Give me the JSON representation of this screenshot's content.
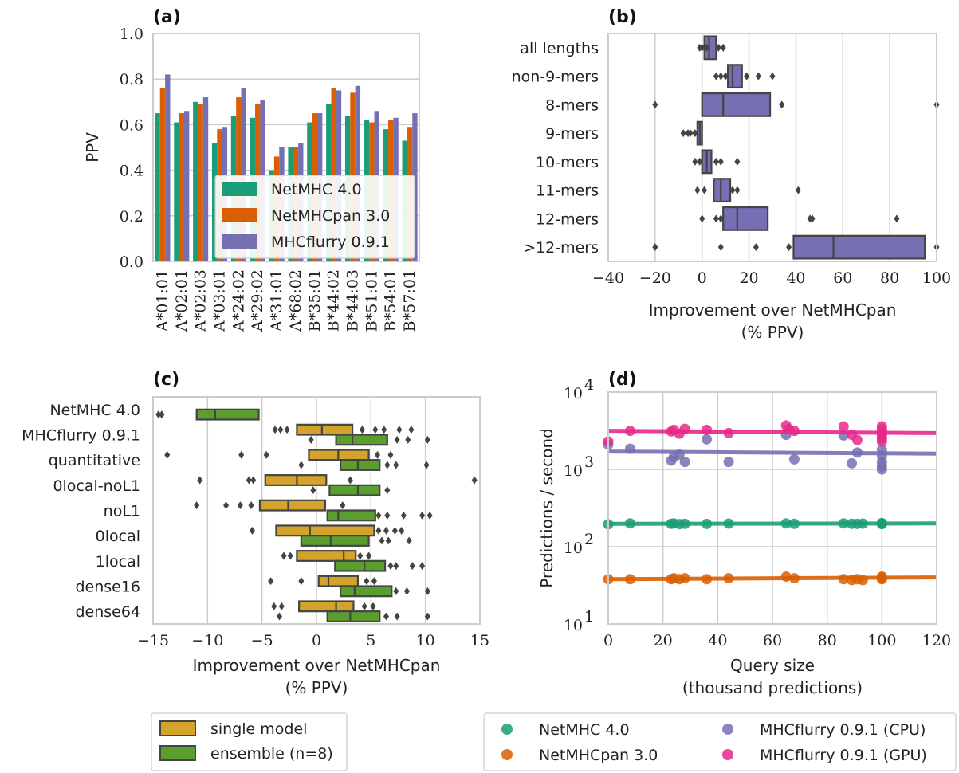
{
  "chart_data": [
    {
      "panel": "(a)",
      "type": "bar",
      "ylabel": "PPV",
      "ylim": [
        0,
        1.0
      ],
      "yticks": [
        "0.0",
        "0.2",
        "0.4",
        "0.6",
        "0.8",
        "1.0"
      ],
      "grid": true,
      "legend_placement": "lower-center",
      "categories": [
        "A*01:01",
        "A*02:01",
        "A*02:03",
        "A*03:01",
        "A*24:02",
        "A*29:02",
        "A*31:01",
        "A*68:02",
        "B*35:01",
        "B*44:02",
        "B*44:03",
        "B*51:01",
        "B*54:01",
        "B*57:01"
      ],
      "series": [
        {
          "name": "NetMHC 4.0",
          "color": "#1b9e77",
          "values": [
            0.65,
            0.61,
            0.7,
            0.52,
            0.64,
            0.63,
            0.4,
            0.5,
            0.61,
            0.69,
            0.64,
            0.62,
            0.58,
            0.53
          ]
        },
        {
          "name": "NetMHCpan 3.0",
          "color": "#d95f02",
          "values": [
            0.76,
            0.65,
            0.69,
            0.58,
            0.72,
            0.69,
            0.46,
            0.5,
            0.65,
            0.76,
            0.74,
            0.61,
            0.62,
            0.59
          ]
        },
        {
          "name": "MHCflurry 0.9.1",
          "color": "#7570b3",
          "values": [
            0.82,
            0.66,
            0.72,
            0.59,
            0.76,
            0.71,
            0.5,
            0.52,
            0.65,
            0.75,
            0.77,
            0.66,
            0.63,
            0.65
          ]
        }
      ]
    },
    {
      "panel": "(b)",
      "type": "box",
      "xlabel": "Improvement over NetMHCpan\n(% PPV)",
      "xlim": [
        -40,
        100
      ],
      "xticks": [
        "−40",
        "−20",
        "0",
        "20",
        "40",
        "60",
        "80",
        "100"
      ],
      "grid": true,
      "box_color": "#7570b3",
      "categories": [
        "all lengths",
        "non-9-mers",
        "8-mers",
        "9-mers",
        "10-mers",
        "11-mers",
        "12-mers",
        ">12-mers"
      ],
      "boxes": [
        {
          "q1": 1,
          "median": 3,
          "q3": 6,
          "outliers": [
            -1,
            0,
            2,
            7,
            9
          ]
        },
        {
          "q1": 11,
          "median": 13,
          "q3": 17,
          "outliers": [
            6,
            8,
            10,
            19,
            24,
            30
          ]
        },
        {
          "q1": 0,
          "median": 9,
          "q3": 29,
          "outliers": [
            -20,
            34,
            100
          ]
        },
        {
          "q1": -2,
          "median": -1,
          "q3": 0,
          "outliers": [
            -8,
            -6,
            -5,
            -3
          ]
        },
        {
          "q1": 0,
          "median": 2,
          "q3": 4,
          "outliers": [
            -3,
            -1,
            6,
            8,
            15
          ]
        },
        {
          "q1": 5,
          "median": 8,
          "q3": 12,
          "outliers": [
            -2,
            1,
            13,
            15,
            41
          ]
        },
        {
          "q1": 9,
          "median": 15,
          "q3": 28,
          "outliers": [
            0,
            6,
            8,
            46,
            47,
            83
          ]
        },
        {
          "q1": 39,
          "median": 56,
          "q3": 95,
          "outliers": [
            -20,
            8,
            23,
            37,
            100
          ]
        }
      ]
    },
    {
      "panel": "(c)",
      "type": "box",
      "xlabel": "Improvement over NetMHCpan\n(% PPV)",
      "xlim": [
        -15,
        15
      ],
      "xticks": [
        "−15",
        "−10",
        "−5",
        "0",
        "5",
        "10",
        "15"
      ],
      "grid": true,
      "legend_placement": "below",
      "categories": [
        "NetMHC 4.0",
        "MHCflurry 0.9.1",
        "quantitative",
        "0local-noL1",
        "noL1",
        "0local",
        "1local",
        "dense16",
        "dense64"
      ],
      "series_names": [
        "single model",
        "ensemble (n=8)"
      ],
      "series_colors": [
        "#d4a32b",
        "#5a9e2e"
      ],
      "boxes": [
        {
          "series": 1,
          "row": 0,
          "q1": -11.0,
          "median": -9.3,
          "q3": -5.3,
          "outliers": [
            -14.5,
            -14.2
          ]
        },
        {
          "series": 0,
          "row": 1,
          "q1": -1.8,
          "median": 0.5,
          "q3": 3.3,
          "outliers": [
            -3.8,
            -3.3,
            -2.7,
            4.2,
            5.4,
            6.2,
            7.6,
            8.7
          ]
        },
        {
          "series": 1,
          "row": 1,
          "q1": 1.8,
          "median": 3.3,
          "q3": 6.5,
          "outliers": [
            -0.5,
            7.4,
            8.4,
            10.2
          ]
        },
        {
          "series": 0,
          "row": 2,
          "q1": -0.7,
          "median": 2.0,
          "q3": 4.8,
          "outliers": [
            -13.7,
            -6.9,
            -4.6,
            5.6,
            6.8
          ]
        },
        {
          "series": 1,
          "row": 2,
          "q1": 2.2,
          "median": 3.8,
          "q3": 5.8,
          "outliers": [
            -1.4,
            6.5,
            7.3,
            10.1
          ]
        },
        {
          "series": 0,
          "row": 3,
          "q1": -4.7,
          "median": -1.8,
          "q3": 0.9,
          "outliers": [
            -10.7,
            -6.2,
            -5.8,
            3.1,
            14.5
          ]
        },
        {
          "series": 1,
          "row": 3,
          "q1": 1.2,
          "median": 3.8,
          "q3": 5.8,
          "outliers": [
            -0.3,
            6.5
          ]
        },
        {
          "series": 0,
          "row": 4,
          "q1": -5.2,
          "median": -2.6,
          "q3": 0.8,
          "outliers": [
            -11.0,
            -8.3,
            -7.0,
            -6.0,
            2.4
          ]
        },
        {
          "series": 1,
          "row": 4,
          "q1": 1.0,
          "median": 2.0,
          "q3": 5.4,
          "outliers": [
            5.7,
            6.5,
            8.0,
            9.7,
            10.4
          ]
        },
        {
          "series": 0,
          "row": 5,
          "q1": -3.7,
          "median": -0.6,
          "q3": 5.3,
          "outliers": [
            -5.9,
            5.7,
            6.4,
            7.2,
            7.8
          ]
        },
        {
          "series": 1,
          "row": 5,
          "q1": -1.4,
          "median": 1.3,
          "q3": 4.8,
          "outliers": [
            6.0,
            6.6,
            8.5
          ]
        },
        {
          "series": 0,
          "row": 6,
          "q1": -1.8,
          "median": 2.5,
          "q3": 3.6,
          "outliers": [
            -3.0,
            -2.4,
            4.0,
            4.8
          ]
        },
        {
          "series": 1,
          "row": 6,
          "q1": 1.7,
          "median": 4.4,
          "q3": 6.3,
          "outliers": [
            6.8,
            7.3,
            8.8,
            9.7
          ]
        },
        {
          "series": 0,
          "row": 7,
          "q1": 0.2,
          "median": 1.1,
          "q3": 3.8,
          "outliers": [
            -4.2,
            -1.4,
            4.6,
            5.3
          ]
        },
        {
          "series": 1,
          "row": 7,
          "q1": 2.2,
          "median": 3.5,
          "q3": 6.9,
          "outliers": [
            7.3,
            8.3,
            10.2
          ]
        },
        {
          "series": 0,
          "row": 8,
          "q1": -1.6,
          "median": 1.8,
          "q3": 3.4,
          "outliers": [
            -3.9,
            -3.2,
            4.4,
            5.2
          ]
        },
        {
          "series": 1,
          "row": 8,
          "q1": 1.0,
          "median": 3.1,
          "q3": 5.8,
          "outliers": [
            -3.4,
            6.4,
            7.4,
            10.2
          ]
        }
      ]
    },
    {
      "panel": "(d)",
      "type": "scatter",
      "xlabel": "Query size\n(thousand predictions)",
      "ylabel": "Predictions / second",
      "xlim": [
        0,
        120
      ],
      "xticks": [
        "0",
        "20",
        "40",
        "60",
        "80",
        "100",
        "120"
      ],
      "yscale": "log",
      "ylim": [
        10,
        10000
      ],
      "yticks": [
        {
          "base": "10",
          "exp": "1"
        },
        {
          "base": "10",
          "exp": "2"
        },
        {
          "base": "10",
          "exp": "3"
        },
        {
          "base": "10",
          "exp": "4"
        }
      ],
      "grid": true,
      "legend_placement": "below",
      "series": [
        {
          "name": "NetMHC 4.0",
          "color": "#1b9e77",
          "x": [
            0,
            8,
            23,
            24,
            26,
            28,
            36,
            44,
            65,
            68,
            86,
            89,
            91,
            93,
            100,
            100,
            100
          ],
          "y": [
            195,
            200,
            198,
            200,
            196,
            198,
            197,
            199,
            200,
            198,
            200,
            198,
            197,
            199,
            196,
            200,
            202
          ],
          "fit": [
            198,
            200
          ]
        },
        {
          "name": "NetMHCpan 3.0",
          "color": "#d95f02",
          "x": [
            0,
            8,
            23,
            24,
            26,
            28,
            36,
            44,
            65,
            68,
            86,
            89,
            91,
            93,
            100,
            100,
            100
          ],
          "y": [
            38,
            38,
            38,
            39,
            38,
            39,
            38,
            39,
            41,
            39,
            38,
            37,
            38,
            37,
            38,
            40,
            41
          ],
          "fit": [
            38,
            40
          ]
        },
        {
          "name": "MHCflurry 0.9.1 (CPU)",
          "color": "#7570b3",
          "x": [
            0,
            8,
            23,
            24,
            26,
            28,
            36,
            44,
            65,
            68,
            86,
            89,
            91,
            100,
            100,
            100,
            100,
            100
          ],
          "y": [
            2100,
            1850,
            1300,
            1450,
            1550,
            1250,
            2450,
            1250,
            2800,
            1350,
            2750,
            1200,
            1650,
            1000,
            1100,
            1250,
            1500,
            1800
          ],
          "fit": [
            1700,
            1600
          ]
        },
        {
          "name": "MHCflurry 0.9.1 (GPU)",
          "color": "#e7298a",
          "x": [
            0,
            8,
            23,
            24,
            26,
            28,
            36,
            44,
            65,
            66,
            68,
            86,
            89,
            91,
            100,
            100,
            100,
            100,
            100,
            100
          ],
          "y": [
            2300,
            3150,
            3100,
            3250,
            2900,
            3350,
            3250,
            2950,
            3700,
            3300,
            3150,
            3600,
            2800,
            2400,
            2300,
            2700,
            3000,
            3300,
            3600,
            2500
          ],
          "fit": [
            3150,
            2950
          ]
        }
      ]
    }
  ]
}
